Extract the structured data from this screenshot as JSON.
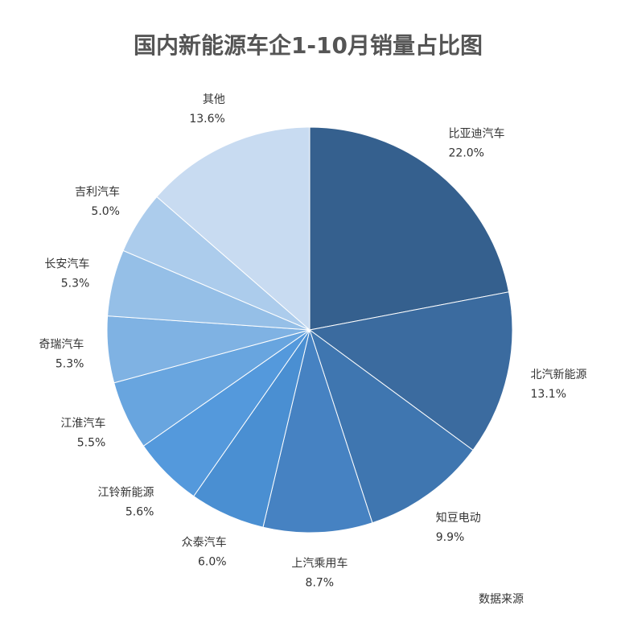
{
  "chart_data": {
    "type": "pie",
    "title": "国内新能源车企1-10月销量占比图",
    "categories": [
      "比亚迪汽车",
      "北汽新能源",
      "知豆电动",
      "上汽乘用车",
      "众泰汽车",
      "江铃新能源",
      "江淮汽车",
      "奇瑞汽车",
      "长安汽车",
      "吉利汽车",
      "其他"
    ],
    "values": [
      22,
      13.1,
      9.9,
      8.7,
      6,
      5.6,
      5.5,
      5.3,
      5.3,
      5,
      13.6
    ],
    "value_labels": [
      "22.0%",
      "13.1%",
      "9.9%",
      "8.7%",
      "6.0%",
      "5.6%",
      "5.5%",
      "5.3%",
      "5.3%",
      "5.0%",
      "13.6%"
    ],
    "colors": [
      "#35608e",
      "#3b6b9f",
      "#3f76b0",
      "#4682c2",
      "#4a8fd2",
      "#5499dc",
      "#68a5df",
      "#7fb2e3",
      "#95bfe7",
      "#acccec",
      "#c8dbf1"
    ],
    "source": "数据来源"
  }
}
